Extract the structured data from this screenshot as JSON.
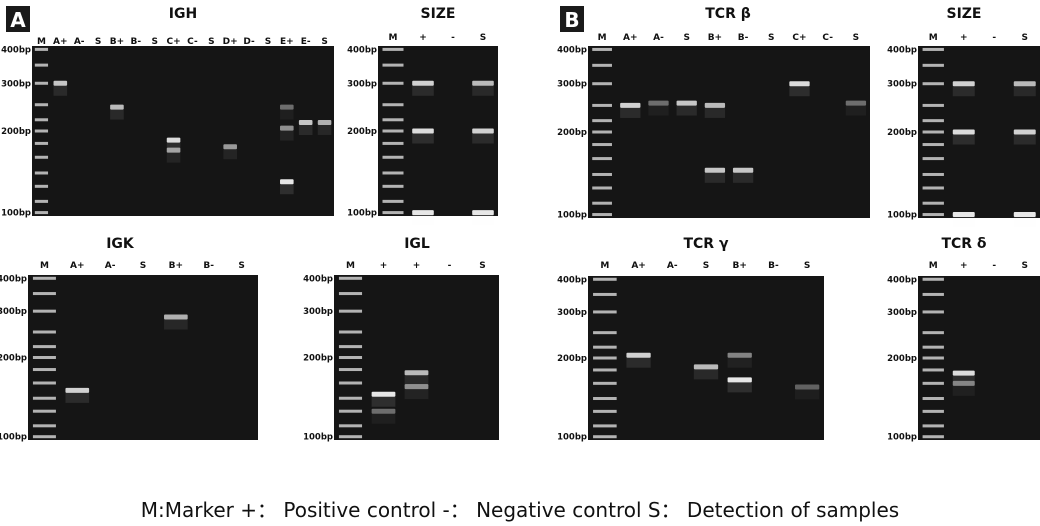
{
  "legend_text": "M:Marker  +： Positive control   -： Negative control  S： Detection of samples",
  "colors": {
    "gel_background": "#151515",
    "band": "#f2f2f2",
    "text": "#111111",
    "panel_label_bg": "#1a1a1a"
  },
  "panel_labels": [
    "A",
    "B"
  ],
  "gels": [
    {
      "id": "igh",
      "title": "IGH",
      "lanes": [
        "M",
        "A+",
        "A-",
        "S",
        "B+",
        "B-",
        "S",
        "C+",
        "C-",
        "S",
        "D+",
        "D-",
        "S",
        "E+",
        "E-",
        "S"
      ],
      "ladder": [
        "400bp",
        "300bp",
        "200bp",
        "100bp"
      ],
      "bands": [
        [
          1,
          300,
          0.8
        ],
        [
          4,
          245,
          0.75
        ],
        [
          7,
          185,
          0.9
        ],
        [
          7,
          170,
          0.6
        ],
        [
          10,
          175,
          0.6
        ],
        [
          13,
          130,
          0.95
        ],
        [
          13,
          205,
          0.55
        ],
        [
          13,
          245,
          0.4
        ],
        [
          14,
          215,
          0.8
        ],
        [
          15,
          215,
          0.7
        ]
      ]
    },
    {
      "id": "size_a",
      "title": "SIZE",
      "lanes": [
        "M",
        "+",
        "-",
        "S"
      ],
      "ladder": [
        "400bp",
        "300bp",
        "200bp",
        "100bp"
      ],
      "bands": [
        [
          1,
          300,
          0.85
        ],
        [
          1,
          200,
          0.9
        ],
        [
          1,
          100,
          0.95
        ],
        [
          3,
          300,
          0.75
        ],
        [
          3,
          200,
          0.85
        ],
        [
          3,
          100,
          0.95
        ]
      ]
    },
    {
      "id": "igk",
      "title": "IGK",
      "lanes": [
        "M",
        "A+",
        "A-",
        "S",
        "B+",
        "B-",
        "S"
      ],
      "ladder": [
        "400bp",
        "300bp",
        "200bp",
        "100bp"
      ],
      "bands": [
        [
          1,
          150,
          0.85
        ],
        [
          4,
          285,
          0.7
        ]
      ]
    },
    {
      "id": "igl",
      "title": "IGL",
      "lanes": [
        "M",
        "+",
        "+",
        "-",
        "S"
      ],
      "ladder": [
        "400bp",
        "300bp",
        "200bp",
        "100bp"
      ],
      "bands": [
        [
          1,
          145,
          0.95
        ],
        [
          1,
          125,
          0.4
        ],
        [
          2,
          175,
          0.75
        ],
        [
          2,
          155,
          0.55
        ]
      ]
    },
    {
      "id": "tcrb",
      "title": "TCR β",
      "lanes": [
        "M",
        "A+",
        "A-",
        "S",
        "B+",
        "B-",
        "S",
        "C+",
        "C-",
        "S"
      ],
      "ladder": [
        "400bp",
        "300bp",
        "200bp",
        "100bp"
      ],
      "bands": [
        [
          1,
          250,
          0.85
        ],
        [
          2,
          255,
          0.4
        ],
        [
          3,
          255,
          0.8
        ],
        [
          4,
          250,
          0.75
        ],
        [
          4,
          145,
          0.8
        ],
        [
          5,
          145,
          0.8
        ],
        [
          7,
          300,
          0.9
        ],
        [
          9,
          255,
          0.4
        ]
      ]
    },
    {
      "id": "size_b",
      "title": "SIZE",
      "lanes": [
        "M",
        "+",
        "-",
        "S"
      ],
      "ladder": [
        "400bp",
        "300bp",
        "200bp",
        "100bp"
      ],
      "bands": [
        [
          1,
          300,
          0.85
        ],
        [
          1,
          200,
          0.9
        ],
        [
          1,
          100,
          0.95
        ],
        [
          3,
          300,
          0.75
        ],
        [
          3,
          200,
          0.85
        ],
        [
          3,
          100,
          0.95
        ]
      ]
    },
    {
      "id": "tcrg",
      "title": "TCR γ",
      "lanes": [
        "M",
        "A+",
        "A-",
        "S",
        "B+",
        "B-",
        "S"
      ],
      "ladder": [
        "400bp",
        "300bp",
        "200bp",
        "100bp"
      ],
      "bands": [
        [
          1,
          205,
          0.85
        ],
        [
          3,
          185,
          0.75
        ],
        [
          4,
          205,
          0.5
        ],
        [
          4,
          165,
          0.95
        ],
        [
          6,
          155,
          0.35
        ]
      ]
    },
    {
      "id": "tcrd",
      "title": "TCR δ",
      "lanes": [
        "M",
        "+",
        "-",
        "S"
      ],
      "ladder": [
        "400bp",
        "300bp",
        "200bp",
        "100bp"
      ],
      "bands": [
        [
          1,
          175,
          0.9
        ],
        [
          1,
          160,
          0.45
        ]
      ]
    }
  ]
}
